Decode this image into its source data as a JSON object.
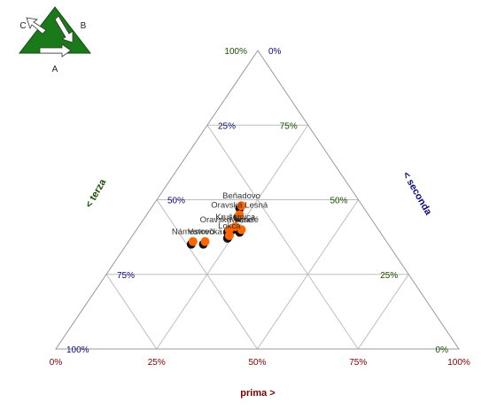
{
  "logo": {
    "letter_a": "A",
    "letter_b": "B",
    "letter_c": "C"
  },
  "chart_data": {
    "type": "ternary",
    "axes": {
      "a": {
        "label": "prima >",
        "ticks": [
          "0%",
          "25%",
          "50%",
          "75%",
          "100%"
        ],
        "color": "#7a0000"
      },
      "b": {
        "label": "< seconda",
        "ticks": [
          "0%",
          "25%",
          "50%",
          "75%",
          "100%"
        ],
        "color": "#0a0a78"
      },
      "c": {
        "label": "< terza",
        "ticks": [
          "0%",
          "25%",
          "50%",
          "75%",
          "100%"
        ],
        "color": "#1a4d00"
      }
    },
    "grid": true,
    "grid_step": 0.25,
    "marker_color": "#ff6600",
    "points": [
      {
        "label": "Beňadovo",
        "a": 0.22,
        "b": 0.3,
        "c": 0.48
      },
      {
        "label": "Oravská Lesná",
        "a": 0.23,
        "b": 0.32,
        "c": 0.45
      },
      {
        "label": "Mútne",
        "a": 0.26,
        "b": 0.34,
        "c": 0.4
      },
      {
        "label": "Krušetnica",
        "a": 0.24,
        "b": 0.35,
        "c": 0.41
      },
      {
        "label": "Oravské Veselé",
        "a": 0.23,
        "b": 0.37,
        "c": 0.4
      },
      {
        "label": "Lokca",
        "a": 0.24,
        "b": 0.38,
        "c": 0.38
      },
      {
        "label": "Vavrečka",
        "a": 0.19,
        "b": 0.45,
        "c": 0.36
      },
      {
        "label": "Námestovo",
        "a": 0.16,
        "b": 0.48,
        "c": 0.36
      }
    ]
  }
}
